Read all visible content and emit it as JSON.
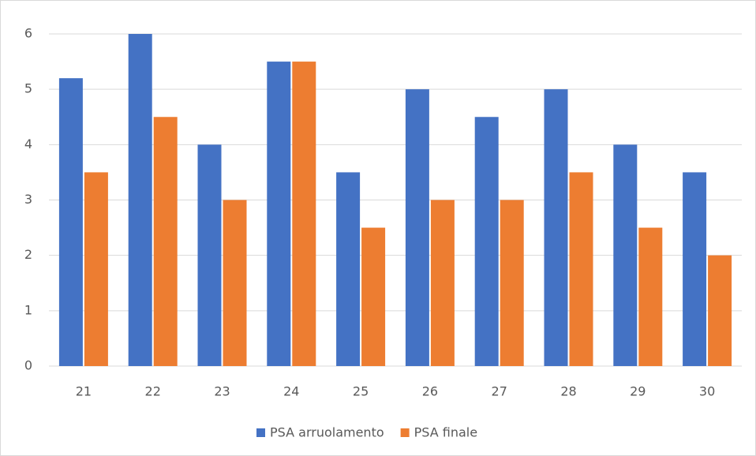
{
  "chart_data": {
    "type": "bar",
    "categories": [
      "21",
      "22",
      "23",
      "24",
      "25",
      "26",
      "27",
      "28",
      "29",
      "30"
    ],
    "series": [
      {
        "name": "PSA arruolamento",
        "color": "#4472c4",
        "values": [
          5.2,
          6,
          4,
          5.5,
          3.5,
          5,
          4.5,
          5,
          4,
          3.5
        ]
      },
      {
        "name": "PSA finale",
        "color": "#ed7d31",
        "values": [
          3.5,
          4.5,
          3,
          5.5,
          2.5,
          3,
          3,
          3.5,
          2.5,
          2
        ]
      }
    ],
    "ylim": [
      0,
      6
    ],
    "yticks": [
      0,
      1,
      2,
      3,
      4,
      5,
      6
    ],
    "grid": true,
    "legend": "bottom"
  }
}
